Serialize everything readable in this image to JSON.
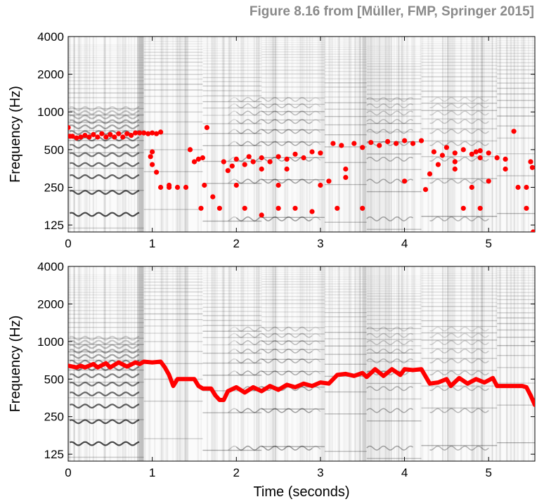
{
  "figure_title": "Figure 8.16 from [Müller, FMP, Springer 2015]",
  "colors": {
    "melody": "#ff0000",
    "spectrogram": "#000000",
    "background": "#ffffff"
  },
  "chart_data": [
    {
      "type": "scatter",
      "name": "melody-candidates",
      "xlabel": "",
      "ylabel": "Frequency (Hz)",
      "xlim": [
        0,
        5.55
      ],
      "ylim": [
        110,
        4000
      ],
      "yscale": "log",
      "xticks": [
        0,
        1,
        2,
        3,
        4,
        5
      ],
      "xtick_labels": [
        "0",
        "1",
        "2",
        "3",
        "4",
        "5"
      ],
      "yticks": [
        125,
        250,
        500,
        1000,
        2000,
        4000
      ],
      "ytick_labels": [
        "125",
        "250",
        "500",
        "1000",
        "2000",
        "4000"
      ],
      "series": [
        {
          "points": [
            [
              0.0,
              750
            ],
            [
              0.02,
              640
            ],
            [
              0.05,
              640
            ],
            [
              0.1,
              620
            ],
            [
              0.15,
              630
            ],
            [
              0.2,
              650
            ],
            [
              0.25,
              630
            ],
            [
              0.3,
              660
            ],
            [
              0.35,
              630
            ],
            [
              0.4,
              670
            ],
            [
              0.45,
              630
            ],
            [
              0.5,
              660
            ],
            [
              0.55,
              630
            ],
            [
              0.6,
              670
            ],
            [
              0.65,
              630
            ],
            [
              0.7,
              670
            ],
            [
              0.75,
              650
            ],
            [
              0.8,
              680
            ],
            [
              0.85,
              680
            ],
            [
              0.9,
              680
            ],
            [
              0.95,
              670
            ],
            [
              1.0,
              680
            ],
            [
              1.05,
              670
            ],
            [
              1.1,
              690
            ],
            [
              0.98,
              440
            ],
            [
              1.0,
              380
            ],
            [
              1.05,
              330
            ],
            [
              1.0,
              480
            ],
            [
              1.1,
              250
            ],
            [
              1.2,
              250
            ],
            [
              1.3,
              250
            ],
            [
              1.4,
              250
            ],
            [
              1.45,
              500
            ],
            [
              1.5,
              400
            ],
            [
              1.55,
              420
            ],
            [
              1.6,
              430
            ],
            [
              1.65,
              750
            ],
            [
              1.62,
              260
            ],
            [
              1.58,
              170
            ],
            [
              1.72,
              210
            ],
            [
              1.8,
              170
            ],
            [
              1.85,
              400
            ],
            [
              1.9,
              340
            ],
            [
              1.95,
              370
            ],
            [
              2.0,
              420
            ],
            [
              2.1,
              380
            ],
            [
              2.15,
              440
            ],
            [
              2.2,
              400
            ],
            [
              2.3,
              430
            ],
            [
              2.4,
              400
            ],
            [
              2.5,
              440
            ],
            [
              2.6,
              420
            ],
            [
              2.7,
              460
            ],
            [
              2.8,
              430
            ],
            [
              2.9,
              480
            ],
            [
              3.0,
              470
            ],
            [
              3.1,
              280
            ],
            [
              3.15,
              560
            ],
            [
              3.25,
              540
            ],
            [
              3.3,
              300
            ],
            [
              3.4,
              560
            ],
            [
              3.5,
              520
            ],
            [
              3.6,
              570
            ],
            [
              3.7,
              540
            ],
            [
              3.8,
              580
            ],
            [
              3.9,
              560
            ],
            [
              4.0,
              590
            ],
            [
              4.1,
              560
            ],
            [
              4.2,
              590
            ],
            [
              4.25,
              240
            ],
            [
              4.3,
              320
            ],
            [
              4.35,
              480
            ],
            [
              4.45,
              450
            ],
            [
              4.5,
              520
            ],
            [
              4.6,
              470
            ],
            [
              4.7,
              500
            ],
            [
              4.8,
              460
            ],
            [
              4.85,
              480
            ],
            [
              4.9,
              490
            ],
            [
              5.0,
              470
            ],
            [
              5.1,
              430
            ],
            [
              5.2,
              420
            ],
            [
              5.3,
              700
            ],
            [
              5.35,
              250
            ],
            [
              5.45,
              250
            ],
            [
              5.45,
              170
            ],
            [
              5.5,
              400
            ],
            [
              5.52,
              360
            ],
            [
              5.53,
              110
            ],
            [
              2.1,
              170
            ],
            [
              2.3,
              150
            ],
            [
              2.5,
              170
            ],
            [
              2.7,
              170
            ],
            [
              2.9,
              160
            ],
            [
              3.2,
              170
            ],
            [
              3.5,
              170
            ],
            [
              4.7,
              170
            ],
            [
              4.9,
              170
            ],
            [
              1.2,
              260
            ],
            [
              2.0,
              260
            ],
            [
              2.5,
              260
            ],
            [
              3.0,
              260
            ],
            [
              4.0,
              280
            ],
            [
              4.8,
              250
            ],
            [
              5.0,
              280
            ],
            [
              2.3,
              350
            ],
            [
              2.6,
              350
            ],
            [
              3.3,
              350
            ],
            [
              4.6,
              350
            ],
            [
              5.2,
              350
            ],
            [
              4.4,
              380
            ],
            [
              4.6,
              400
            ],
            [
              4.9,
              430
            ]
          ]
        }
      ]
    },
    {
      "type": "line",
      "name": "melody-trajectory",
      "xlabel": "Time (seconds)",
      "ylabel": "Frequency (Hz)",
      "xlim": [
        0,
        5.55
      ],
      "ylim": [
        110,
        4000
      ],
      "yscale": "log",
      "xticks": [
        0,
        1,
        2,
        3,
        4,
        5
      ],
      "xtick_labels": [
        "0",
        "1",
        "2",
        "3",
        "4",
        "5"
      ],
      "yticks": [
        125,
        250,
        500,
        1000,
        2000,
        4000
      ],
      "ytick_labels": [
        "125",
        "250",
        "500",
        "1000",
        "2000",
        "4000"
      ],
      "series": [
        {
          "points": [
            [
              0.0,
              640
            ],
            [
              0.1,
              620
            ],
            [
              0.15,
              640
            ],
            [
              0.2,
              620
            ],
            [
              0.3,
              660
            ],
            [
              0.35,
              620
            ],
            [
              0.45,
              670
            ],
            [
              0.5,
              620
            ],
            [
              0.6,
              680
            ],
            [
              0.7,
              630
            ],
            [
              0.8,
              680
            ],
            [
              0.85,
              660
            ],
            [
              0.9,
              690
            ],
            [
              1.0,
              680
            ],
            [
              1.1,
              690
            ],
            [
              1.15,
              620
            ],
            [
              1.2,
              540
            ],
            [
              1.25,
              440
            ],
            [
              1.3,
              500
            ],
            [
              1.5,
              500
            ],
            [
              1.55,
              440
            ],
            [
              1.6,
              420
            ],
            [
              1.7,
              420
            ],
            [
              1.75,
              370
            ],
            [
              1.8,
              340
            ],
            [
              1.85,
              340
            ],
            [
              1.9,
              400
            ],
            [
              2.0,
              430
            ],
            [
              2.1,
              390
            ],
            [
              2.2,
              430
            ],
            [
              2.3,
              400
            ],
            [
              2.4,
              440
            ],
            [
              2.5,
              410
            ],
            [
              2.6,
              450
            ],
            [
              2.7,
              430
            ],
            [
              2.8,
              460
            ],
            [
              2.9,
              440
            ],
            [
              3.0,
              470
            ],
            [
              3.1,
              460
            ],
            [
              3.2,
              540
            ],
            [
              3.3,
              550
            ],
            [
              3.4,
              530
            ],
            [
              3.5,
              560
            ],
            [
              3.55,
              520
            ],
            [
              3.65,
              600
            ],
            [
              3.75,
              530
            ],
            [
              3.85,
              600
            ],
            [
              3.95,
              540
            ],
            [
              4.0,
              600
            ],
            [
              4.1,
              590
            ],
            [
              4.2,
              600
            ],
            [
              4.3,
              460
            ],
            [
              4.4,
              470
            ],
            [
              4.5,
              500
            ],
            [
              4.55,
              440
            ],
            [
              4.65,
              510
            ],
            [
              4.75,
              460
            ],
            [
              4.85,
              500
            ],
            [
              4.95,
              470
            ],
            [
              5.05,
              510
            ],
            [
              5.1,
              440
            ],
            [
              5.2,
              440
            ],
            [
              5.3,
              440
            ],
            [
              5.4,
              440
            ],
            [
              5.45,
              430
            ],
            [
              5.5,
              370
            ],
            [
              5.55,
              310
            ]
          ]
        }
      ]
    }
  ]
}
